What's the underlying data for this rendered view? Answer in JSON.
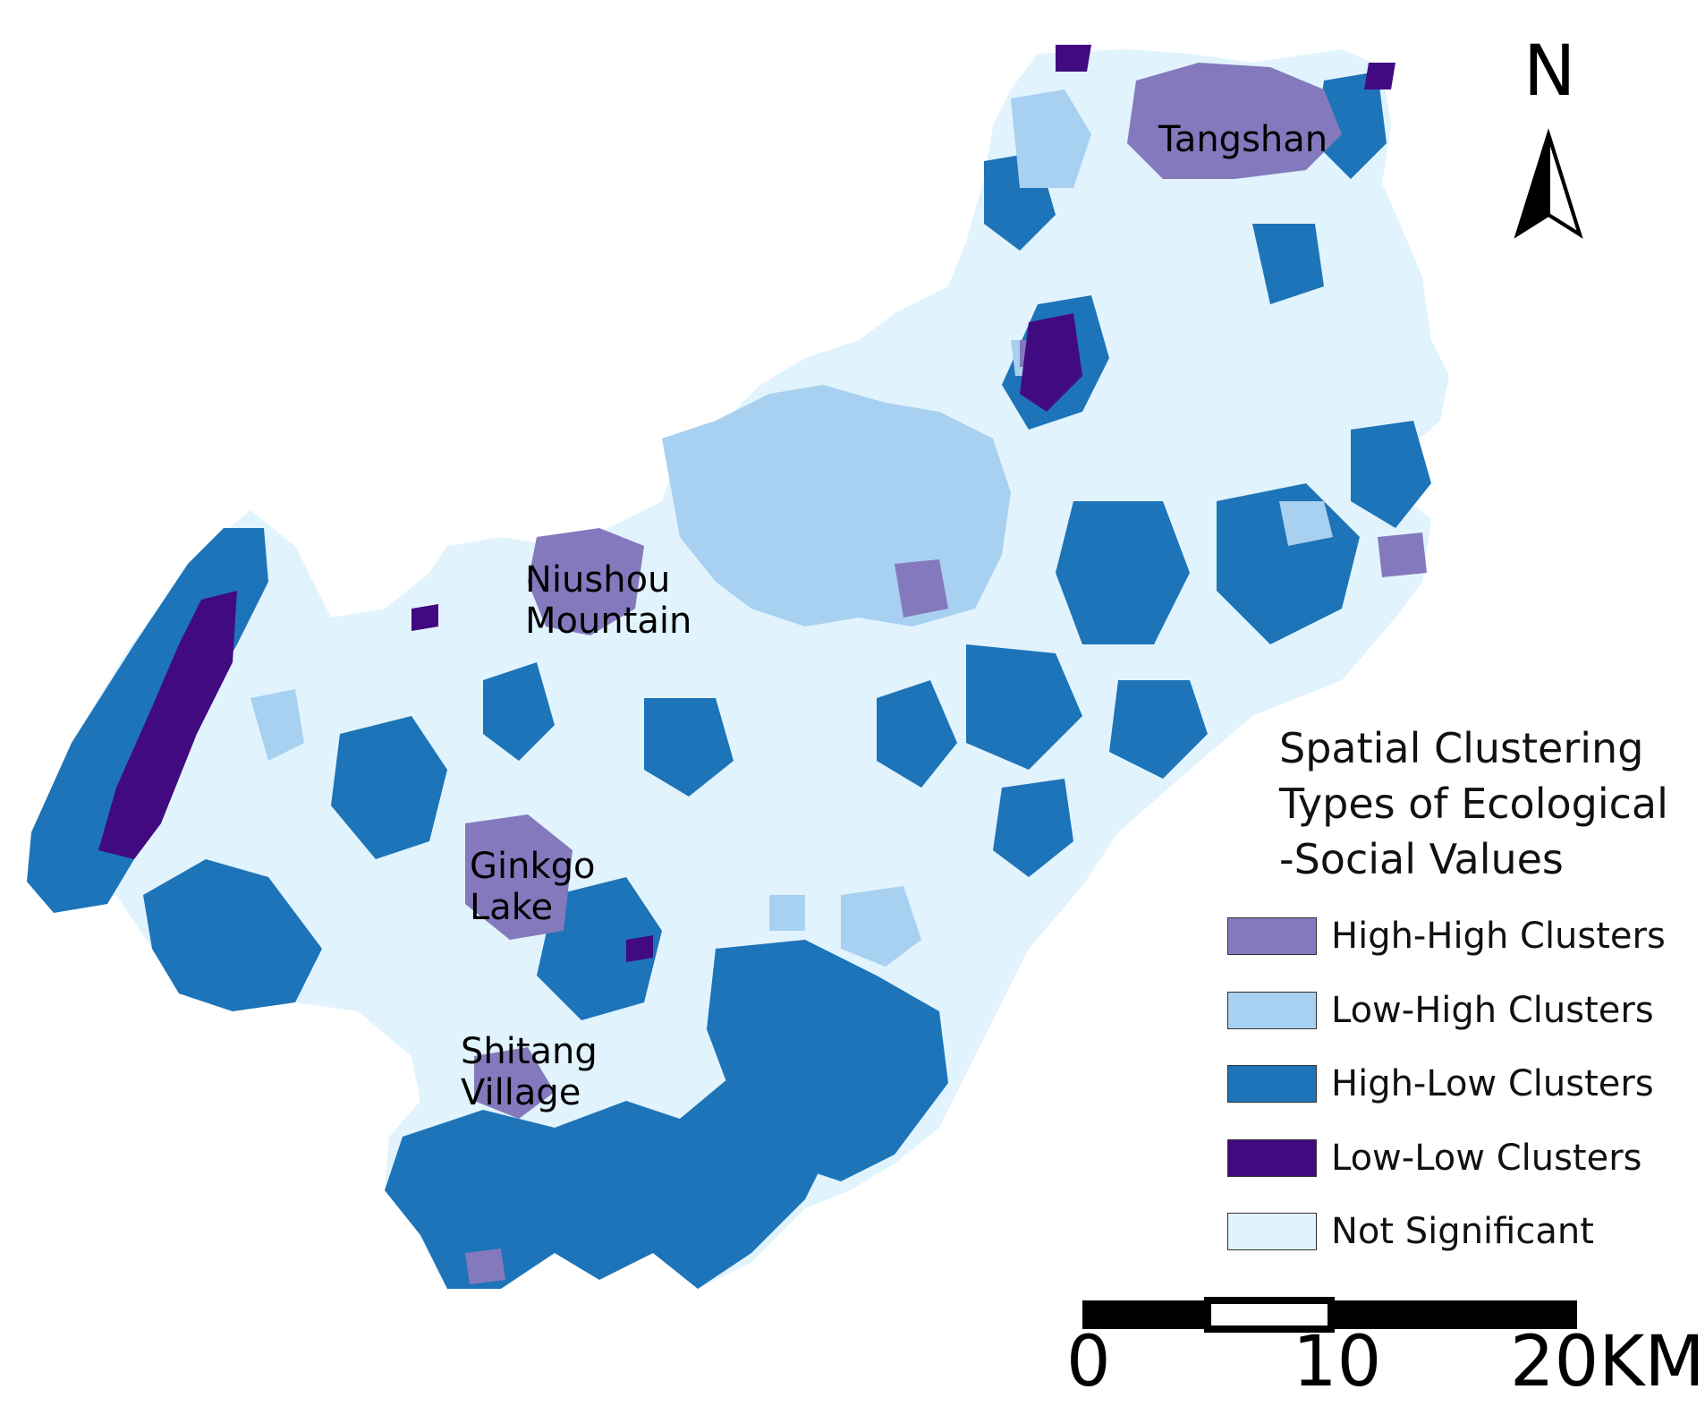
{
  "place_labels": {
    "tangshan": "Tangshan",
    "niushou_line1": "Niushou",
    "niushou_line2": "Mountain",
    "ginkgo_line1": "Ginkgo",
    "ginkgo_line2": "Lake",
    "shitang_line1": "Shitang",
    "shitang_line2": "Village"
  },
  "north_arrow": {
    "label": "N"
  },
  "legend": {
    "title_line1": "Spatial Clustering",
    "title_line2": "Types of Ecological",
    "title_line3": "-Social Values",
    "items": [
      {
        "label": "High-High Clusters",
        "color": "#8479bd"
      },
      {
        "label": "Low-High Clusters",
        "color": "#a8d0f0"
      },
      {
        "label": "High-Low Clusters",
        "color": "#1d74b8"
      },
      {
        "label": "Low-Low Clusters",
        "color": "#420a80"
      },
      {
        "label": "Not Significant",
        "color": "#e1f3fc"
      }
    ]
  },
  "scale_bar": {
    "ticks": [
      "0",
      "10",
      "20KM"
    ]
  }
}
